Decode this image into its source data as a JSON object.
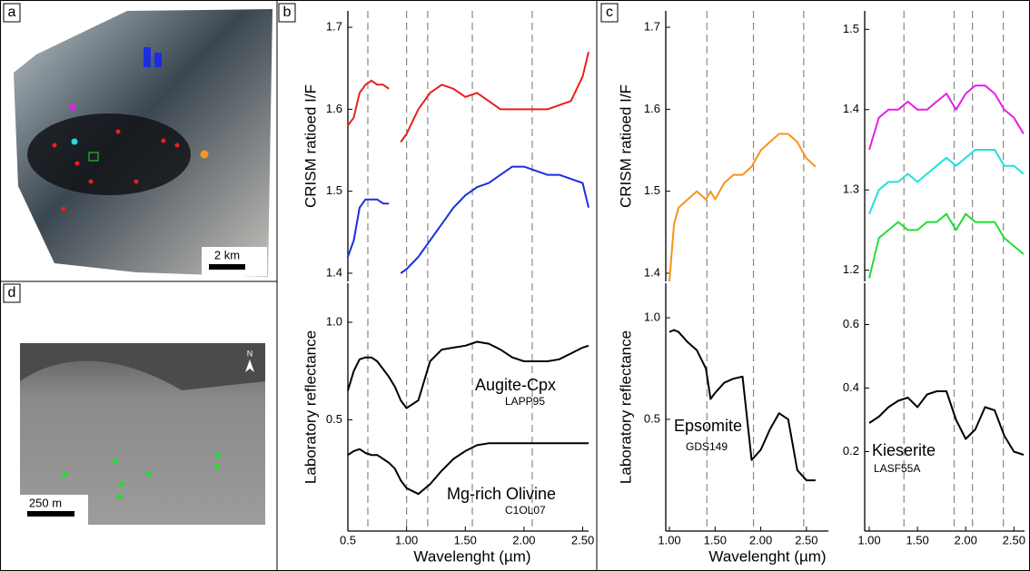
{
  "panels": {
    "labels": [
      "a",
      "b",
      "c",
      "d"
    ],
    "a_scale": "2 km",
    "d_scale": "250 m",
    "north": "N"
  },
  "chart_data": [
    {
      "type": "line",
      "ylabel": "CRISM ratioed I/F",
      "x": [
        0.5,
        0.55,
        0.6,
        0.65,
        0.7,
        0.75,
        0.8,
        0.85,
        0.9,
        0.95,
        1.0,
        1.1,
        1.2,
        1.3,
        1.4,
        1.5,
        1.6,
        1.7,
        1.8,
        1.9,
        2.0,
        2.1,
        2.2,
        2.3,
        2.4,
        2.5,
        2.55
      ],
      "series": [
        {
          "color": "#e8201c",
          "values": [
            1.58,
            1.59,
            1.62,
            1.63,
            1.635,
            1.63,
            1.63,
            1.625,
            null,
            1.56,
            1.57,
            1.6,
            1.62,
            1.63,
            1.625,
            1.615,
            1.62,
            1.61,
            1.6,
            1.6,
            1.6,
            1.6,
            1.6,
            1.605,
            1.61,
            1.64,
            1.67
          ]
        },
        {
          "color": "#1a2ee0",
          "values": [
            1.42,
            1.44,
            1.48,
            1.49,
            1.49,
            1.49,
            1.485,
            1.485,
            null,
            1.4,
            1.405,
            1.42,
            1.44,
            1.46,
            1.48,
            1.495,
            1.505,
            1.51,
            1.52,
            1.53,
            1.53,
            1.525,
            1.52,
            1.52,
            1.515,
            1.51,
            1.48
          ]
        }
      ],
      "xlim": [
        0.5,
        2.55
      ],
      "ylim": [
        1.39,
        1.72
      ],
      "yticks": [
        1.4,
        1.5,
        1.6,
        1.7
      ],
      "vlines": [
        0.67,
        1.0,
        1.18,
        1.56,
        2.07
      ]
    },
    {
      "type": "line",
      "ylabel": "Laboratory reflectance",
      "xlabel": "Wavelenght (µm)",
      "x": [
        0.5,
        0.55,
        0.6,
        0.65,
        0.7,
        0.75,
        0.8,
        0.85,
        0.9,
        0.95,
        1.0,
        1.1,
        1.2,
        1.3,
        1.4,
        1.5,
        1.6,
        1.7,
        1.8,
        1.9,
        2.0,
        2.1,
        2.2,
        2.3,
        2.4,
        2.5,
        2.55
      ],
      "series": [
        {
          "name": "Augite-Cpx",
          "sample": "LAPP95",
          "color": "#000000",
          "values": [
            0.65,
            0.75,
            0.81,
            0.82,
            0.82,
            0.8,
            0.76,
            0.72,
            0.67,
            0.6,
            0.56,
            0.6,
            0.8,
            0.86,
            0.87,
            0.88,
            0.9,
            0.89,
            0.86,
            0.82,
            0.8,
            0.8,
            0.8,
            0.81,
            0.84,
            0.87,
            0.88
          ]
        },
        {
          "name": "Mg-rich Olivine",
          "sample": "C1OL07",
          "color": "#000000",
          "values": [
            0.32,
            0.34,
            0.35,
            0.33,
            0.32,
            0.32,
            0.3,
            0.28,
            0.25,
            0.19,
            0.15,
            0.12,
            0.17,
            0.24,
            0.3,
            0.34,
            0.37,
            0.38,
            0.38,
            0.38,
            0.38,
            0.38,
            0.38,
            0.38,
            0.38,
            0.38,
            0.38
          ]
        }
      ],
      "xlim": [
        0.5,
        2.55
      ],
      "ylim": [
        -0.07,
        1.2
      ],
      "xticks": [
        0.5,
        {
          "value": 1,
          "label": "1.00"
        },
        {
          "value": 1.5,
          "label": "1.50"
        },
        {
          "value": 2,
          "label": "2.00"
        },
        {
          "value": 2.5,
          "label": "2.50"
        }
      ],
      "yticks": [
        0.5,
        {
          "value": 1,
          "label": "1.0"
        }
      ],
      "vlines": [
        0.67,
        1.0,
        1.18,
        1.56,
        2.07
      ]
    },
    {
      "type": "line",
      "ylabel": "CRISM ratioed I/F",
      "x": [
        1.0,
        1.05,
        1.1,
        1.2,
        1.3,
        1.4,
        1.45,
        1.5,
        1.6,
        1.7,
        1.8,
        1.9,
        2.0,
        2.1,
        2.2,
        2.3,
        2.4,
        2.5,
        2.6
      ],
      "series": [
        {
          "color": "#f7941d",
          "values": [
            1.39,
            1.46,
            1.48,
            1.49,
            1.5,
            1.49,
            1.5,
            1.49,
            1.51,
            1.52,
            1.52,
            1.53,
            1.55,
            1.56,
            1.57,
            1.57,
            1.56,
            1.54,
            1.53
          ]
        }
      ],
      "xlim": [
        0.96,
        2.74
      ],
      "ylim": [
        1.39,
        1.72
      ],
      "yticks": [
        1.4,
        1.5,
        1.6,
        1.7
      ],
      "vlines": [
        1.41,
        1.92,
        2.47
      ]
    },
    {
      "type": "line",
      "ylabel": "Laboratory reflectance",
      "xlabel": "Wavelenght (µm)",
      "x": [
        1.0,
        1.05,
        1.1,
        1.2,
        1.3,
        1.4,
        1.45,
        1.5,
        1.6,
        1.7,
        1.8,
        1.9,
        2.0,
        2.1,
        2.2,
        2.3,
        2.4,
        2.5,
        2.6
      ],
      "series": [
        {
          "name": "Epsomite",
          "sample": "GDS149",
          "color": "#000000",
          "values": [
            0.93,
            0.94,
            0.93,
            0.88,
            0.84,
            0.75,
            0.6,
            0.63,
            0.68,
            0.7,
            0.71,
            0.3,
            0.35,
            0.45,
            0.53,
            0.5,
            0.25,
            0.2,
            0.2
          ]
        }
      ],
      "xlim": [
        0.96,
        2.74
      ],
      "ylim": [
        -0.05,
        1.17
      ],
      "xticks": [
        {
          "value": 1,
          "label": "1.00"
        },
        {
          "value": 1.5,
          "label": "1.50"
        },
        {
          "value": 2,
          "label": "2.00"
        },
        {
          "value": 2.5,
          "label": "2.50"
        }
      ],
      "yticks": [
        0.5,
        {
          "value": 1,
          "label": "1.0"
        }
      ],
      "vlines": [
        1.41,
        1.92,
        2.47
      ]
    },
    {
      "type": "line",
      "x": [
        1.0,
        1.1,
        1.2,
        1.3,
        1.4,
        1.5,
        1.6,
        1.7,
        1.8,
        1.9,
        2.0,
        2.1,
        2.2,
        2.3,
        2.4,
        2.5,
        2.6
      ],
      "series": [
        {
          "color": "#e61ee6",
          "values": [
            1.35,
            1.39,
            1.4,
            1.4,
            1.41,
            1.4,
            1.4,
            1.41,
            1.42,
            1.4,
            1.42,
            1.43,
            1.43,
            1.42,
            1.4,
            1.39,
            1.37
          ]
        },
        {
          "color": "#22e0dc",
          "values": [
            1.27,
            1.3,
            1.31,
            1.31,
            1.32,
            1.31,
            1.32,
            1.33,
            1.34,
            1.33,
            1.34,
            1.35,
            1.35,
            1.35,
            1.33,
            1.33,
            1.32
          ]
        },
        {
          "color": "#22dd33",
          "values": [
            1.19,
            1.24,
            1.25,
            1.26,
            1.25,
            1.25,
            1.26,
            1.26,
            1.27,
            1.25,
            1.27,
            1.26,
            1.26,
            1.26,
            1.24,
            1.23,
            1.22
          ]
        }
      ],
      "xlim": [
        0.953,
        2.61
      ],
      "ylim": [
        1.186,
        1.523
      ],
      "yticks": [
        1.2,
        1.3,
        1.4,
        1.5
      ],
      "vlines": [
        1.36,
        1.88,
        2.07,
        2.39
      ]
    },
    {
      "type": "line",
      "x": [
        1.0,
        1.1,
        1.2,
        1.3,
        1.4,
        1.5,
        1.6,
        1.7,
        1.8,
        1.9,
        2.0,
        2.1,
        2.2,
        2.3,
        2.4,
        2.5,
        2.6
      ],
      "series": [
        {
          "name": "Kieserite",
          "sample": "LASF55A",
          "color": "#000000",
          "values": [
            0.29,
            0.31,
            0.34,
            0.36,
            0.37,
            0.34,
            0.38,
            0.39,
            0.39,
            0.3,
            0.24,
            0.27,
            0.34,
            0.33,
            0.25,
            0.2,
            0.19
          ]
        }
      ],
      "xlim": [
        0.953,
        2.61
      ],
      "ylim": [
        -0.05,
        0.73
      ],
      "xticks": [
        {
          "value": 1,
          "label": "1.00"
        },
        {
          "value": 1.5,
          "label": "1.50"
        },
        {
          "value": 2,
          "label": "2.00"
        },
        {
          "value": 2.5,
          "label": "2.50"
        }
      ],
      "yticks": [
        0.2,
        0.4,
        0.6
      ],
      "vlines": [
        1.36,
        1.88,
        2.07,
        2.39
      ]
    }
  ]
}
